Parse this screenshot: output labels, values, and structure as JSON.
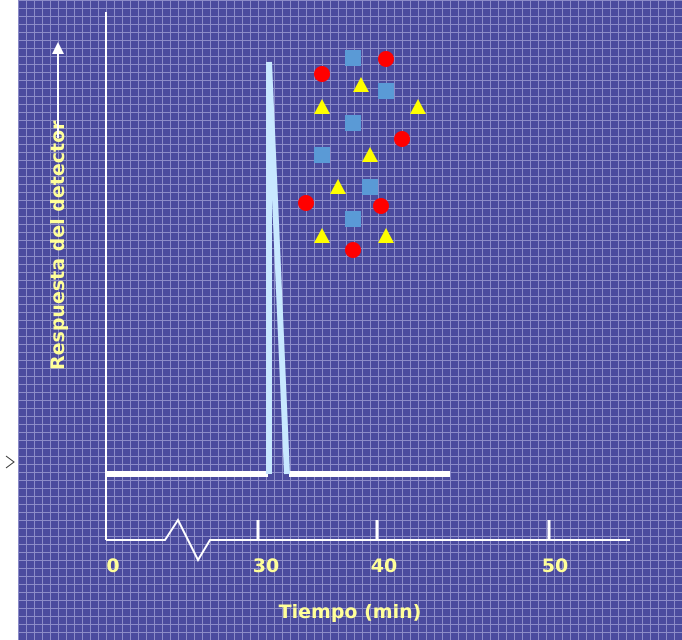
{
  "y_axis": {
    "label": "Respuesta del detector"
  },
  "x_axis": {
    "label": "Tiempo (min)",
    "tick_labels": [
      "0",
      "30",
      "40",
      "50"
    ]
  }
}
